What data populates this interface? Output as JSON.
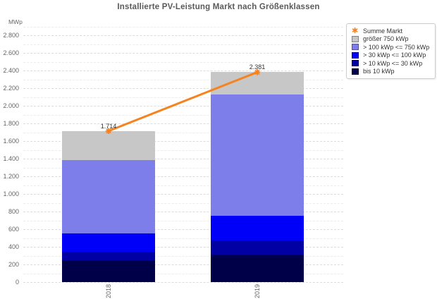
{
  "chart": {
    "title": "Installierte PV-Leistung Markt nach Größenklassen",
    "y_unit": "MWp"
  },
  "chart_data": {
    "type": "bar",
    "stacked": true,
    "title": "Installierte PV-Leistung Markt nach Größenklassen",
    "ylabel": "MWp",
    "xlabel": "",
    "categories": [
      "2018",
      "2019"
    ],
    "series": [
      {
        "name": "bis 10 kWp",
        "color": "#000048",
        "values": [
          250,
          312
        ]
      },
      {
        "name": "> 10 kWp <= 30 kWp",
        "color": "#0000A3",
        "values": [
          95,
          160
        ]
      },
      {
        "name": "> 30 kWp <= 100 kWp",
        "color": "#0000F8",
        "values": [
          205,
          280
        ]
      },
      {
        "name": "> 100 kWp <= 750 kWp",
        "color": "#7E7EEA",
        "values": [
          836,
          1374
        ]
      },
      {
        "name": "größer 750 kWp",
        "color": "#C7C7C7",
        "values": [
          328,
          255
        ]
      }
    ],
    "line_series": {
      "name": "Summe Markt",
      "color": "#F5831F",
      "marker": "star",
      "values": [
        1714,
        2381
      ],
      "point_labels": [
        "1.714",
        "2.381"
      ]
    },
    "ylim": [
      0,
      2900
    ],
    "y_major_step": 200,
    "y_minor_step": 100,
    "grid": "horizontal-dashed",
    "legend_position": "top-right",
    "legend_order": [
      "Summe Markt",
      "größer 750 kWp",
      "> 100 kWp <= 750 kWp",
      "> 30 kWp <= 100 kWp",
      "> 10 kWp <= 30 kWp",
      "bis 10 kWp"
    ]
  }
}
